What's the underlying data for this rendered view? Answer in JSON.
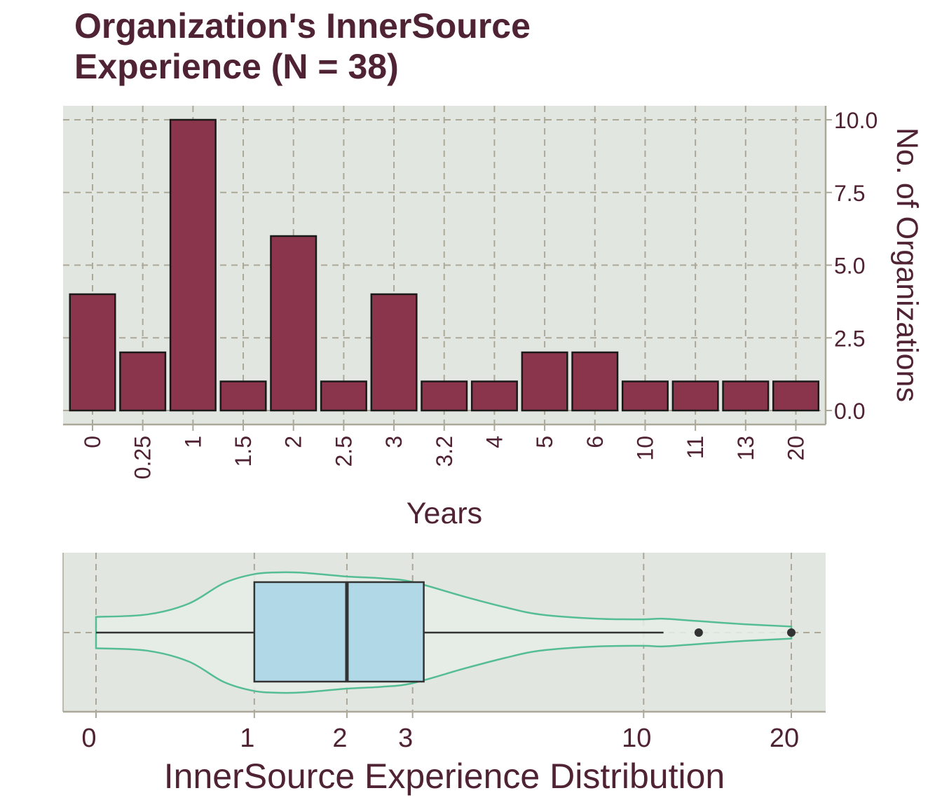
{
  "title_lines": [
    "Organization's InnerSource",
    "Experience (N = 38)"
  ],
  "colors": {
    "panel_background": "#e2e6e0",
    "grid": "#aca899",
    "bar_fill": "#8a354b",
    "bar_stroke": "#1a1a1a",
    "text": "#4f2234",
    "box_fill": "#b1d8e7",
    "violin_stroke": "#55bd93",
    "violin_fill": "#e6ede6",
    "median_line": "#333333"
  },
  "chart_data": [
    {
      "type": "bar",
      "categories": [
        "0",
        "0.25",
        "1",
        "1.5",
        "2",
        "2.5",
        "3",
        "3.2",
        "4",
        "5",
        "6",
        "10",
        "11",
        "13",
        "20"
      ],
      "values": [
        4,
        2,
        10,
        1,
        6,
        1,
        4,
        1,
        1,
        2,
        2,
        1,
        1,
        1,
        1
      ],
      "xlabel": "Years",
      "ylabel": "No. of Organizations",
      "ylim": [
        0,
        10
      ],
      "y_ticks": [
        "0.0",
        "2.5",
        "5.0",
        "7.5",
        "10.0"
      ],
      "y_axis_position": "right",
      "x_tick_rotation": "vertical",
      "grid": true,
      "grid_style": "dashed"
    },
    {
      "type": "box-violin",
      "orientation": "horizontal",
      "xlabel": "InnerSource Experience Distribution",
      "x_scale": "log1p",
      "x_ticks": [
        0,
        1,
        2,
        3,
        10,
        20
      ],
      "x_tick_labels": [
        "0",
        "1",
        "2",
        "3",
        "10",
        "20"
      ],
      "box": {
        "whisker_low": 0,
        "q1": 1,
        "median": 2,
        "q3": 3.2,
        "whisker_high": 11,
        "outliers": [
          13,
          20
        ]
      },
      "violin_density": [
        [
          0,
          0.26
        ],
        [
          0.25,
          0.3
        ],
        [
          0.5,
          0.48
        ],
        [
          0.75,
          0.82
        ],
        [
          1,
          0.97
        ],
        [
          1.25,
          1.0
        ],
        [
          1.5,
          0.99
        ],
        [
          2,
          0.93
        ],
        [
          2.5,
          0.9
        ],
        [
          3,
          0.84
        ],
        [
          4,
          0.6
        ],
        [
          5,
          0.42
        ],
        [
          6,
          0.3
        ],
        [
          8,
          0.23
        ],
        [
          10,
          0.22
        ],
        [
          11,
          0.23
        ],
        [
          13,
          0.19
        ],
        [
          16,
          0.14
        ],
        [
          20,
          0.1
        ]
      ],
      "grid": true,
      "grid_style": "dashed"
    }
  ]
}
